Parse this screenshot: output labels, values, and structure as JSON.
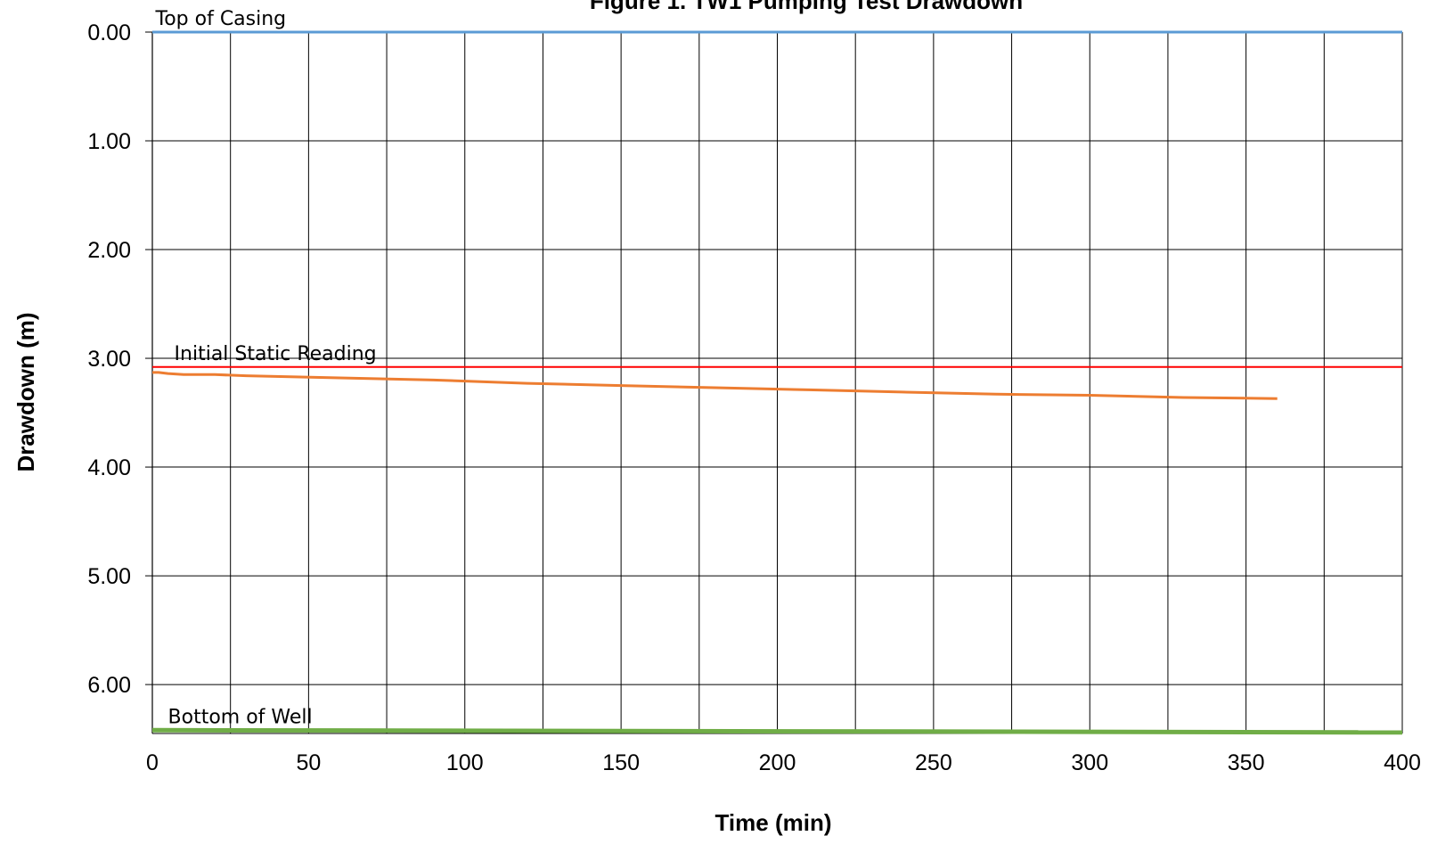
{
  "chart_data": {
    "type": "line",
    "title": "Figure 1. TW1 Pumping Test Drawdown",
    "xlabel": "Time (min)",
    "ylabel": "Drawdown (m)",
    "xlim": [
      0,
      400
    ],
    "ylim": [
      0,
      6.45
    ],
    "y_inverted": true,
    "x_ticks": [
      0,
      50,
      100,
      150,
      200,
      250,
      300,
      350,
      400
    ],
    "x_tick_labels": [
      "0",
      "50",
      "100",
      "150",
      "200",
      "250",
      "300",
      "350",
      "400"
    ],
    "y_ticks": [
      0,
      1,
      2,
      3,
      4,
      5,
      6
    ],
    "y_tick_labels": [
      "0.00",
      "1.00",
      "2.00",
      "3.00",
      "4.00",
      "5.00",
      "6.00"
    ],
    "x_gridline_step": 25,
    "grid": true,
    "legend": "none",
    "series": [
      {
        "color": "#5b9bd5",
        "x": [
          0,
          400
        ],
        "y": [
          0.0,
          0.0
        ]
      },
      {
        "color": "#ff0000",
        "x": [
          0,
          400
        ],
        "y": [
          3.08,
          3.08
        ]
      },
      {
        "color": "#ed7d31",
        "x": [
          0,
          2,
          5,
          10,
          20,
          30,
          60,
          90,
          120,
          150,
          180,
          210,
          240,
          270,
          300,
          330,
          360
        ],
        "y": [
          3.13,
          3.13,
          3.14,
          3.15,
          3.15,
          3.16,
          3.18,
          3.2,
          3.23,
          3.25,
          3.27,
          3.29,
          3.31,
          3.33,
          3.34,
          3.36,
          3.37
        ]
      },
      {
        "color": "#70ad47",
        "x": [
          0,
          400
        ],
        "y": [
          6.42,
          6.44
        ]
      }
    ],
    "annotations": [
      {
        "text": "Top of Casing",
        "x": 1,
        "y": 0.0
      },
      {
        "text": "Initial  Static Reading",
        "x": 7,
        "y": 3.08
      },
      {
        "text": "Bottom of Well",
        "x": 5,
        "y": 6.42
      }
    ]
  }
}
